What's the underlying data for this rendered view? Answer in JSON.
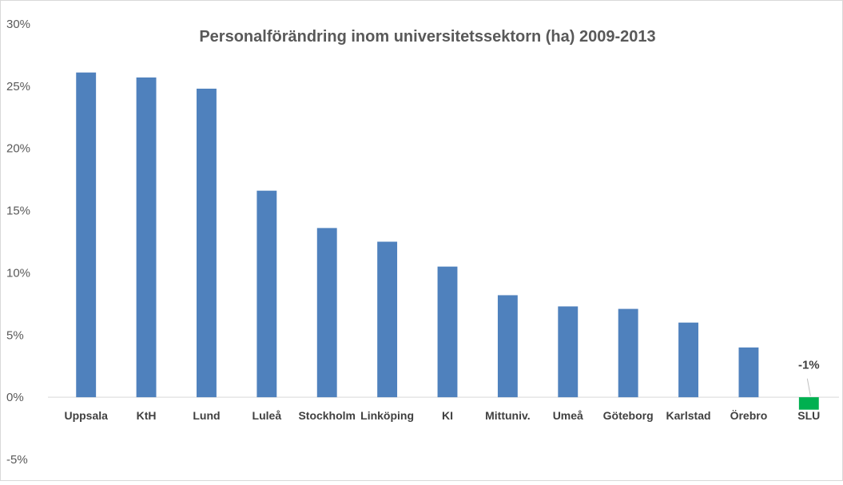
{
  "chart_data": {
    "type": "bar",
    "title": "Personalförändring inom universitetssektorn (ha) 2009-2013",
    "xlabel": "",
    "ylabel": "",
    "ylim": [
      -5,
      30
    ],
    "yticks": [
      30,
      25,
      20,
      15,
      10,
      5,
      0,
      -5
    ],
    "ytick_labels": [
      "30%",
      "25%",
      "20%",
      "15%",
      "10%",
      "5%",
      "0%",
      "-5%"
    ],
    "categories": [
      "Uppsala",
      "KtH",
      "Lund",
      "Luleå",
      "Stockholm",
      "Linköping",
      "KI",
      "Mittuniv.",
      "Umeå",
      "Göteborg",
      "Karlstad",
      "Örebro",
      "SLU"
    ],
    "values": [
      26.1,
      25.7,
      24.8,
      16.6,
      13.6,
      12.5,
      10.5,
      8.2,
      7.3,
      7.1,
      6.0,
      4.0,
      -1.0
    ],
    "bar_colors": [
      "#4f81bd",
      "#4f81bd",
      "#4f81bd",
      "#4f81bd",
      "#4f81bd",
      "#4f81bd",
      "#4f81bd",
      "#4f81bd",
      "#4f81bd",
      "#4f81bd",
      "#4f81bd",
      "#4f81bd",
      "#00b050"
    ],
    "data_labels": [
      {
        "category": "SLU",
        "text": "-1%"
      }
    ],
    "grid": false,
    "legend": "none"
  }
}
